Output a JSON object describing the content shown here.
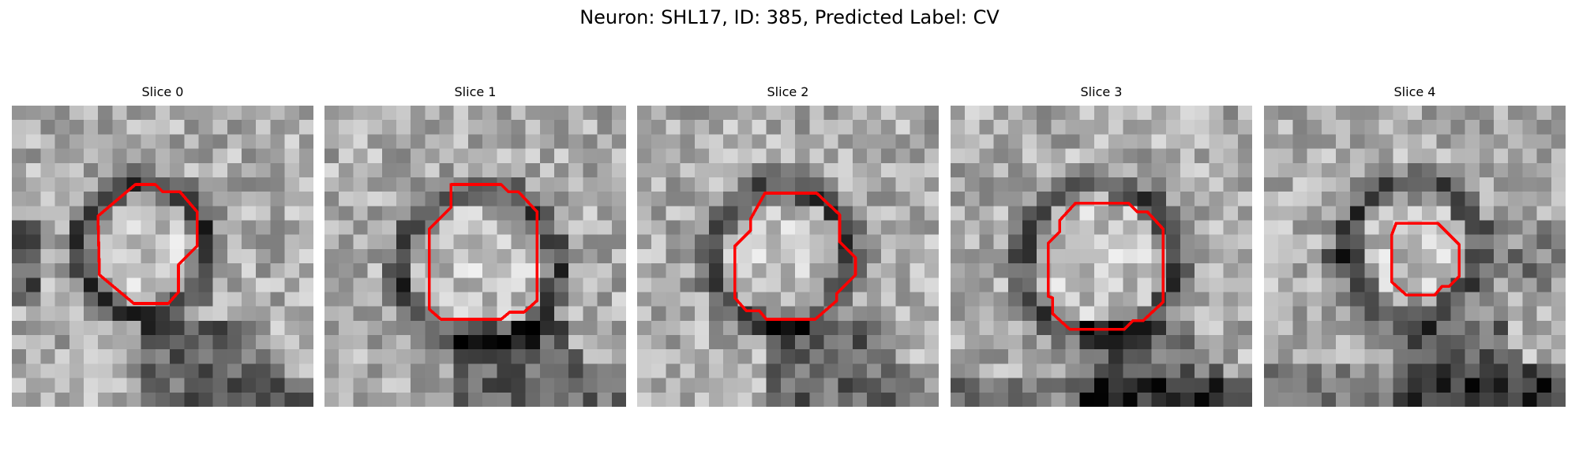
{
  "figure": {
    "title": "Neuron: SHL17, ID: 385, Predicted Label: CV"
  },
  "panels": [
    {
      "title": "Slice 0",
      "seed": 11,
      "vesicle_row": 10.0,
      "vesicle_col": 9.2,
      "vesicle_radius": 4.6,
      "side_blob": "left"
    },
    {
      "title": "Slice 1",
      "seed": 23,
      "vesicle_row": 11.3,
      "vesicle_col": 10.8,
      "vesicle_radius": 5.5,
      "side_blob": "none"
    },
    {
      "title": "Slice 2",
      "seed": 37,
      "vesicle_row": 10.5,
      "vesicle_col": 10.0,
      "vesicle_radius": 4.9,
      "side_blob": "none"
    },
    {
      "title": "Slice 3",
      "seed": 41,
      "vesicle_row": 10.8,
      "vesicle_col": 10.4,
      "vesicle_radius": 5.3,
      "side_blob": "none"
    },
    {
      "title": "Slice 4",
      "seed": 53,
      "vesicle_row": 10.0,
      "vesicle_col": 10.4,
      "vesicle_radius": 4.6,
      "side_blob": "right"
    }
  ],
  "contour_color": "#ff0000",
  "colormap": "gray",
  "image_grid_size": 21
}
